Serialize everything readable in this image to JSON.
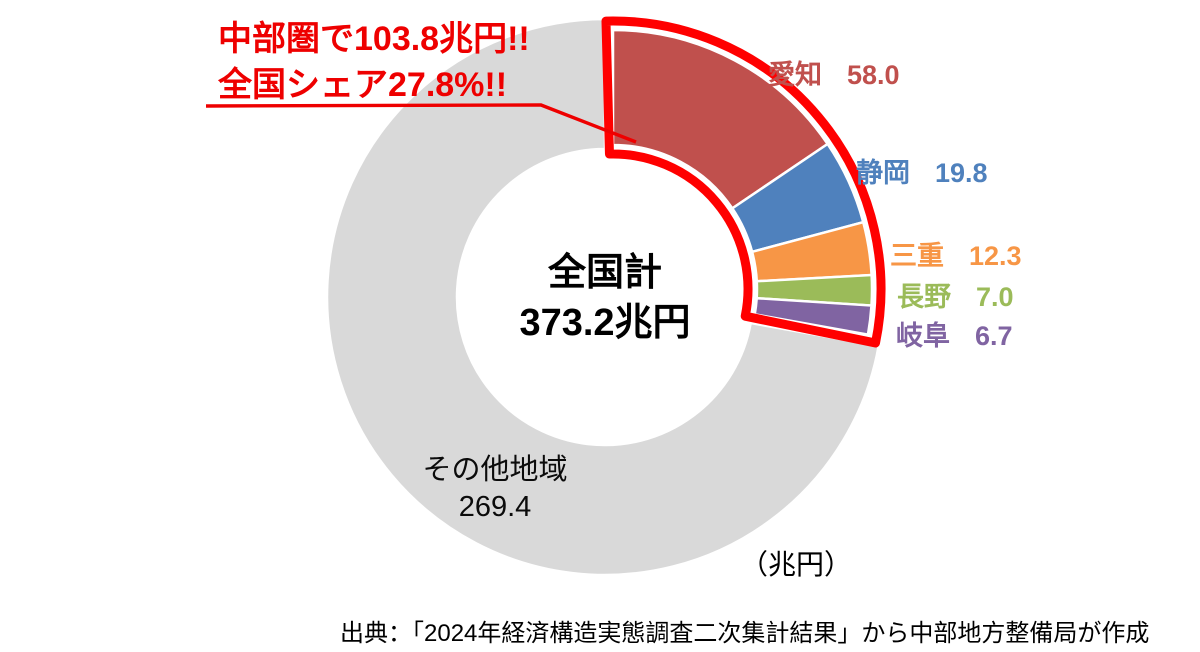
{
  "annotation": {
    "line1": "中部圏で103.8兆円!!",
    "line2": "全国シェア27.8%!!",
    "color": "#ee0000"
  },
  "center_label": {
    "line1": "全国計",
    "line2": "373.2兆円"
  },
  "unit_label": "（兆円）",
  "source_note": "出典：「2024年経済構造実態調査二次集計結果」から中部地方整備局が作成",
  "chart_data": {
    "type": "pie",
    "subtype": "donut",
    "unit": "兆円",
    "total_label": "全国計",
    "total_value": 373.2,
    "start_angle_deg": 0,
    "direction": "clockwise",
    "segments": [
      {
        "label": "愛知",
        "value": 58.0,
        "display": "58.0",
        "color": "#C0504D",
        "highlighted": true
      },
      {
        "label": "静岡",
        "value": 19.8,
        "display": "19.8",
        "color": "#4F81BD",
        "highlighted": true
      },
      {
        "label": "三重",
        "value": 12.3,
        "display": "12.3",
        "color": "#F79646",
        "highlighted": true
      },
      {
        "label": "長野",
        "value": 7.0,
        "display": "7.0",
        "color": "#9BBB59",
        "highlighted": true
      },
      {
        "label": "岐阜",
        "value": 6.7,
        "display": "6.7",
        "color": "#8064A2",
        "highlighted": true
      },
      {
        "label": "その他地域",
        "value": 269.4,
        "display": "269.4",
        "color": "#D9D9D9",
        "highlighted": false
      }
    ],
    "highlight_group": {
      "name": "中部圏",
      "total": 103.8,
      "share_pct": 27.8,
      "outline_color": "#FF0000"
    }
  }
}
